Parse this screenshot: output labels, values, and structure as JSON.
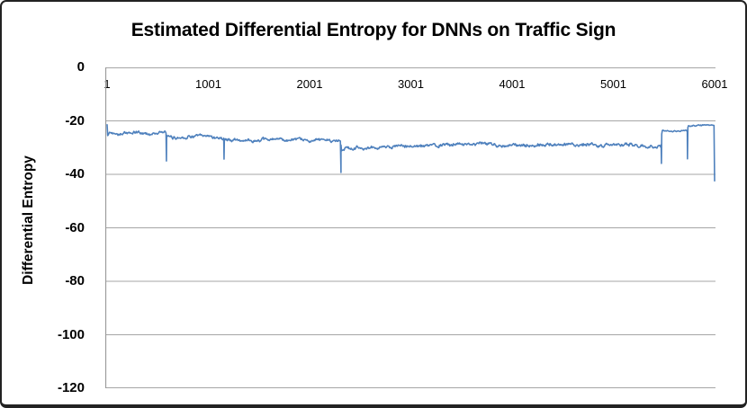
{
  "chart_data": {
    "type": "line",
    "title": "Estimated Differential Entropy for DNNs on Traffic Sign",
    "xlabel": "",
    "ylabel": "Differential Entropy",
    "xlim": [
      1,
      6001
    ],
    "ylim": [
      -120,
      0
    ],
    "x_ticks": [
      1,
      1001,
      2001,
      3001,
      4001,
      5001,
      6001
    ],
    "y_ticks": [
      0,
      -20,
      -40,
      -60,
      -80,
      -100,
      -120
    ],
    "grid": true,
    "legend": "none",
    "colors": {
      "line": "#4F81BD",
      "grid": "#a6a6a6",
      "axis": "#999999",
      "text": "#000000"
    },
    "sample_step": 6,
    "seed": 42,
    "noise_profile": [
      [
        1,
        0.5
      ],
      [
        5470,
        0.55
      ],
      [
        5478,
        0.2
      ],
      [
        6001,
        0.2
      ]
    ],
    "series": [
      {
        "name": "Estimated differential entropy",
        "anchors": [
          [
            1,
            -21.5
          ],
          [
            6,
            -26.0
          ],
          [
            20,
            -24.4
          ],
          [
            150,
            -24.7
          ],
          [
            300,
            -24.4
          ],
          [
            430,
            -24.9
          ],
          [
            520,
            -24.2
          ],
          [
            585,
            -24.6
          ],
          [
            592,
            -26.2
          ],
          [
            700,
            -26.3
          ],
          [
            820,
            -25.7
          ],
          [
            950,
            -25.6
          ],
          [
            1080,
            -26.1
          ],
          [
            1152,
            -26.3
          ],
          [
            1162,
            -27.2
          ],
          [
            1400,
            -27.4
          ],
          [
            1620,
            -27.0
          ],
          [
            1850,
            -27.3
          ],
          [
            2100,
            -27.2
          ],
          [
            2308,
            -27.1
          ],
          [
            2316,
            -30.3
          ],
          [
            2600,
            -30.1
          ],
          [
            2900,
            -29.6
          ],
          [
            3200,
            -29.4
          ],
          [
            3450,
            -28.6
          ],
          [
            3700,
            -28.5
          ],
          [
            3950,
            -29.1
          ],
          [
            4150,
            -29.4
          ],
          [
            4400,
            -28.8
          ],
          [
            4650,
            -28.7
          ],
          [
            4900,
            -29.2
          ],
          [
            5150,
            -29.0
          ],
          [
            5350,
            -29.4
          ],
          [
            5472,
            -29.5
          ],
          [
            5481,
            -23.7
          ],
          [
            5600,
            -23.8
          ],
          [
            5729,
            -23.6
          ],
          [
            5741,
            -21.9
          ],
          [
            5860,
            -21.6
          ],
          [
            5995,
            -21.8
          ],
          [
            6001,
            -42.4
          ]
        ],
        "spikes": [
          {
            "x": 587,
            "v": -35.0
          },
          {
            "x": 1156,
            "v": -34.3
          },
          {
            "x": 2311,
            "v": -39.3
          },
          {
            "x": 5476,
            "v": -35.9
          },
          {
            "x": 5733,
            "v": -34.2
          }
        ]
      }
    ]
  }
}
